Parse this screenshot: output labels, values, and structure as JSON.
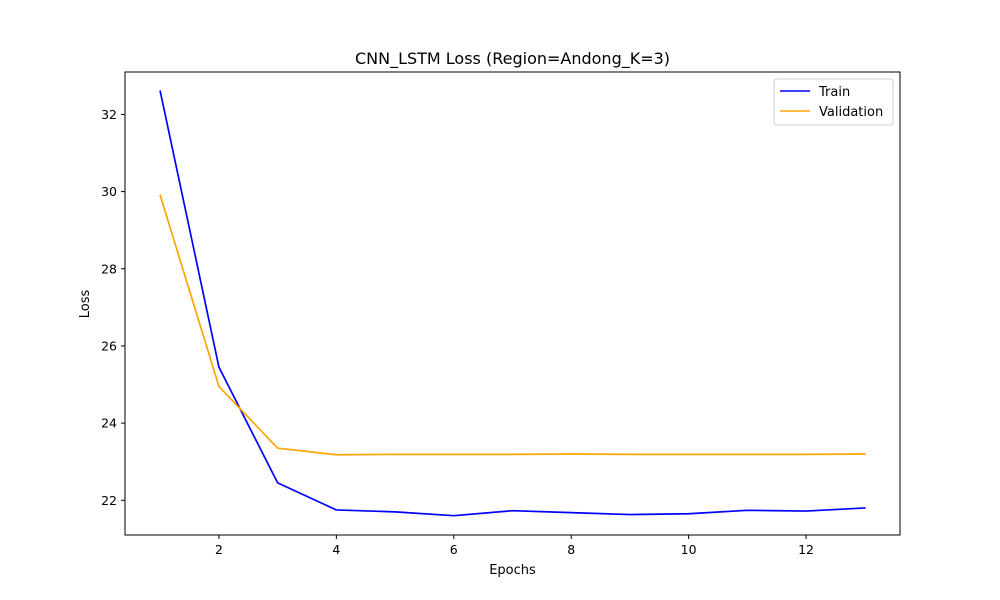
{
  "chart_data": {
    "type": "line",
    "title": "CNN_LSTM Loss (Region=Andong_K=3)",
    "xlabel": "Epochs",
    "ylabel": "Loss",
    "xlim": [
      0.4,
      13.6
    ],
    "ylim": [
      21.1,
      33.1
    ],
    "xticks": [
      2,
      4,
      6,
      8,
      10,
      12
    ],
    "yticks": [
      22,
      24,
      26,
      28,
      30,
      32
    ],
    "grid": false,
    "legend_position": "upper right",
    "x": [
      1,
      2,
      3,
      4,
      5,
      6,
      7,
      8,
      9,
      10,
      11,
      12,
      13
    ],
    "series": [
      {
        "name": "Train",
        "color": "#0000ff",
        "values": [
          32.6,
          25.45,
          22.45,
          21.75,
          21.7,
          21.6,
          21.73,
          21.68,
          21.63,
          21.65,
          21.74,
          21.72,
          21.8
        ]
      },
      {
        "name": "Validation",
        "color": "#ffa500",
        "values": [
          29.9,
          24.95,
          23.35,
          23.18,
          23.19,
          23.19,
          23.19,
          23.2,
          23.19,
          23.19,
          23.19,
          23.19,
          23.2
        ]
      }
    ]
  }
}
